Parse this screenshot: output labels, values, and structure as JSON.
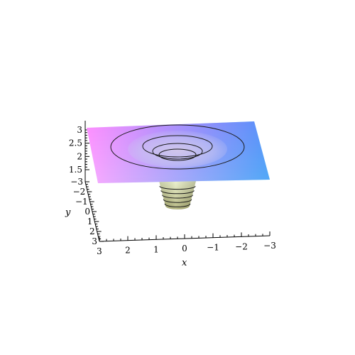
{
  "chart_data": {
    "type": "surface3d",
    "title": "",
    "xlabel": "x",
    "ylabel": "y",
    "zlabel": "",
    "x_ticks": [
      "3",
      "2",
      "1",
      "0",
      "−1",
      "−2",
      "−3"
    ],
    "y_ticks": [
      "−3",
      "−2",
      "−1",
      "0",
      "1",
      "2",
      "3"
    ],
    "z_ticks": [
      "3",
      "2.5",
      "2",
      "1.5"
    ],
    "xlim": [
      -3,
      3
    ],
    "ylim": [
      -3,
      3
    ],
    "zlim": [
      1.5,
      3
    ],
    "surface_level": 2.9,
    "contour_count": 4,
    "funnel_rings": 5,
    "colors": {
      "corner_magenta": "#ff55ff",
      "corner_blue": "#5a5cff",
      "corner_cyan": "#49f2ee",
      "corner_white": "#fafaff",
      "funnel_top": "#e7edc4",
      "funnel_bottom": "#a9ab6c",
      "axis": "#000000"
    }
  }
}
